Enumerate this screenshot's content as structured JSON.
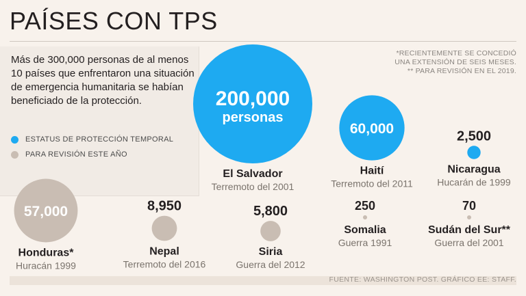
{
  "title": "PAÍSES CON TPS",
  "intro": "Más de 300,000 personas de al menos 10 países que enfrentaron una situación de emergencia humanitaria se habían beneficiado de la protección.",
  "legend": [
    {
      "label": "ESTATUS DE PROTECCIÓN TEMPORAL",
      "color": "#1eaaf1"
    },
    {
      "label": "PARA REVISIÓN ESTE AÑO",
      "color": "#c9bdb3"
    }
  ],
  "notes": [
    "*RECIENTEMENTE SE CONCEDIÓ",
    "UNA EXTENSIÓN DE SEIS MESES.",
    "** PARA REVISIÓN EN EL 2019."
  ],
  "footer": "FUENTE: WASHINGTON POST. GRÁFICO EE: STAFF.",
  "colors": {
    "tps": "#1eaaf1",
    "review": "#c9bdb3",
    "reviewDark": "#b5aaa0"
  },
  "chart_data": {
    "type": "bubble",
    "title": "PAÍSES CON TPS",
    "unit": "personas",
    "series": [
      {
        "country": "El Salvador",
        "value": 200000,
        "value_label": "200,000",
        "sub_label": "personas",
        "event": "Terremoto del 2001",
        "status": "tps",
        "label_inside": true
      },
      {
        "country": "Haití",
        "value": 60000,
        "value_label": "60,000",
        "sub_label": "",
        "event": "Terremoto del 2011",
        "status": "tps",
        "label_inside": true
      },
      {
        "country": "Nicaragua",
        "value": 2500,
        "value_label": "2,500",
        "sub_label": "",
        "event": "Hucarán de 1999",
        "status": "tps",
        "label_inside": false
      },
      {
        "country": "Honduras*",
        "value": 57000,
        "value_label": "57,000",
        "sub_label": "",
        "event": "Huracán 1999",
        "status": "review",
        "label_inside": true
      },
      {
        "country": "Nepal",
        "value": 8950,
        "value_label": "8,950",
        "sub_label": "",
        "event": "Terremoto del 2016",
        "status": "review",
        "label_inside": false
      },
      {
        "country": "Siria",
        "value": 5800,
        "value_label": "5,800",
        "sub_label": "",
        "event": "Guerra del 2012",
        "status": "review",
        "label_inside": false
      },
      {
        "country": "Somalia",
        "value": 250,
        "value_label": "250",
        "sub_label": "",
        "event": "Guerra 1991",
        "status": "review",
        "label_inside": false
      },
      {
        "country": "Sudán del Sur**",
        "value": 70,
        "value_label": "70",
        "sub_label": "",
        "event": "Guerra del 2001",
        "status": "review",
        "label_inside": false
      }
    ]
  }
}
